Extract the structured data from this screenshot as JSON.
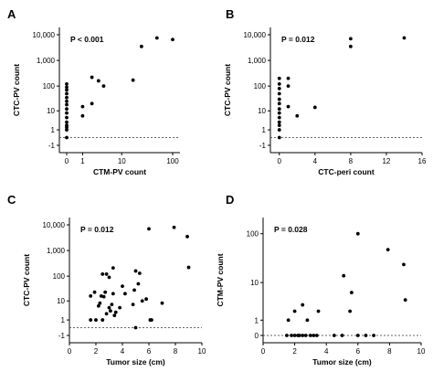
{
  "chart_data": [
    {
      "panel": "A",
      "type": "scatter",
      "pvalue": "P < 0.001",
      "xlabel": "CTM-PV count",
      "ylabel": "CTC-PV count",
      "x_scale": "symlog",
      "y_scale": "symlog",
      "x_ticks": [
        {
          "v": 0,
          "label": "0"
        },
        {
          "v": 1,
          "label": "1"
        },
        {
          "v": 10,
          "label": "10"
        },
        {
          "v": 100,
          "label": "100"
        }
      ],
      "y_ticks": [
        {
          "v": -1,
          "label": "-1"
        },
        {
          "v": 1,
          "label": "1"
        },
        {
          "v": 10,
          "label": "10"
        },
        {
          "v": 100,
          "label": "100"
        },
        {
          "v": 1000,
          "label": "1,000"
        },
        {
          "v": 10000,
          "label": "10,000"
        }
      ],
      "xlim": [
        0,
        100
      ],
      "ylim": [
        -1,
        10000
      ],
      "dashed_line_y": 0,
      "points": [
        [
          0,
          0
        ],
        [
          0,
          1
        ],
        [
          0,
          1.5
        ],
        [
          0,
          2
        ],
        [
          0,
          3
        ],
        [
          0,
          5
        ],
        [
          0,
          8
        ],
        [
          0,
          12
        ],
        [
          0,
          18
        ],
        [
          0,
          25
        ],
        [
          0,
          35
        ],
        [
          0,
          50
        ],
        [
          0,
          70
        ],
        [
          0,
          90
        ],
        [
          0,
          120
        ],
        [
          1,
          6
        ],
        [
          1,
          15
        ],
        [
          2,
          20
        ],
        [
          2,
          220
        ],
        [
          3,
          160
        ],
        [
          4,
          100
        ],
        [
          17,
          170
        ],
        [
          25,
          3500
        ],
        [
          50,
          7500
        ],
        [
          100,
          6500
        ]
      ]
    },
    {
      "panel": "B",
      "type": "scatter",
      "pvalue": "P = 0.012",
      "xlabel": "CTC-peri count",
      "ylabel": "CTC-PV count",
      "x_scale": "linear",
      "y_scale": "symlog",
      "x_ticks": [
        {
          "v": 0,
          "label": "0"
        },
        {
          "v": 4,
          "label": "4"
        },
        {
          "v": 8,
          "label": "8"
        },
        {
          "v": 12,
          "label": "12"
        },
        {
          "v": 16,
          "label": "16"
        }
      ],
      "y_ticks": [
        {
          "v": -1,
          "label": "-1"
        },
        {
          "v": 1,
          "label": "1"
        },
        {
          "v": 10,
          "label": "10"
        },
        {
          "v": 100,
          "label": "100"
        },
        {
          "v": 1000,
          "label": "1,000"
        },
        {
          "v": 10000,
          "label": "10,000"
        }
      ],
      "xlim": [
        -1,
        16
      ],
      "ylim": [
        -1,
        10000
      ],
      "dashed_line_y": 0,
      "points": [
        [
          0,
          0
        ],
        [
          0,
          1
        ],
        [
          0,
          2
        ],
        [
          0,
          3
        ],
        [
          0,
          5
        ],
        [
          0,
          8
        ],
        [
          0,
          12
        ],
        [
          0,
          20
        ],
        [
          0,
          30
        ],
        [
          0,
          50
        ],
        [
          0,
          80
        ],
        [
          0,
          120
        ],
        [
          0,
          200
        ],
        [
          1,
          15
        ],
        [
          1,
          100
        ],
        [
          1,
          200
        ],
        [
          2,
          6
        ],
        [
          4,
          14
        ],
        [
          8,
          3500
        ],
        [
          8,
          7000
        ],
        [
          14,
          7500
        ]
      ]
    },
    {
      "panel": "C",
      "type": "scatter",
      "pvalue": "P = 0.012",
      "xlabel": "Tumor size (cm)",
      "ylabel": "CTC-PV count",
      "x_scale": "linear",
      "y_scale": "symlog",
      "x_ticks": [
        {
          "v": 0,
          "label": "0"
        },
        {
          "v": 2,
          "label": "2"
        },
        {
          "v": 4,
          "label": "4"
        },
        {
          "v": 6,
          "label": "6"
        },
        {
          "v": 8,
          "label": "8"
        },
        {
          "v": 10,
          "label": "10"
        }
      ],
      "y_ticks": [
        {
          "v": -1,
          "label": "-1"
        },
        {
          "v": 1,
          "label": "1"
        },
        {
          "v": 10,
          "label": "10"
        },
        {
          "v": 100,
          "label": "100"
        },
        {
          "v": 1000,
          "label": "1,000"
        },
        {
          "v": 10000,
          "label": "10,000"
        }
      ],
      "xlim": [
        0,
        10
      ],
      "ylim": [
        -1,
        10000
      ],
      "dashed_line_y": 0,
      "points": [
        [
          1.6,
          1
        ],
        [
          1.6,
          16
        ],
        [
          1.9,
          23
        ],
        [
          2.0,
          1
        ],
        [
          2.2,
          6
        ],
        [
          2.3,
          8
        ],
        [
          2.4,
          16
        ],
        [
          2.5,
          1
        ],
        [
          2.5,
          120
        ],
        [
          2.6,
          15
        ],
        [
          2.7,
          23
        ],
        [
          2.8,
          2.5
        ],
        [
          2.8,
          120
        ],
        [
          3.0,
          5
        ],
        [
          3.0,
          90
        ],
        [
          3.1,
          3.5
        ],
        [
          3.2,
          7
        ],
        [
          3.3,
          20
        ],
        [
          3.3,
          210
        ],
        [
          3.4,
          2
        ],
        [
          3.5,
          3
        ],
        [
          3.8,
          5
        ],
        [
          4.0,
          40
        ],
        [
          4.2,
          20
        ],
        [
          4.8,
          7
        ],
        [
          4.9,
          28
        ],
        [
          5.0,
          0
        ],
        [
          5.0,
          160
        ],
        [
          5.2,
          50
        ],
        [
          5.3,
          130
        ],
        [
          5.5,
          10
        ],
        [
          5.8,
          12
        ],
        [
          6.0,
          7000
        ],
        [
          6.1,
          1
        ],
        [
          6.2,
          1
        ],
        [
          7.0,
          8
        ],
        [
          7.9,
          8000
        ],
        [
          8.9,
          3500
        ],
        [
          9.0,
          220
        ]
      ]
    },
    {
      "panel": "D",
      "type": "scatter",
      "pvalue": "P = 0.028",
      "xlabel": "Tumor size (cm)",
      "ylabel": "CTM-PV count",
      "x_scale": "linear",
      "y_scale": "symlog",
      "x_ticks": [
        {
          "v": 0,
          "label": "0"
        },
        {
          "v": 2,
          "label": "2"
        },
        {
          "v": 4,
          "label": "4"
        },
        {
          "v": 6,
          "label": "6"
        },
        {
          "v": 8,
          "label": "8"
        },
        {
          "v": 10,
          "label": "10"
        }
      ],
      "y_ticks": [
        {
          "v": 0,
          "label": "0"
        },
        {
          "v": 1,
          "label": "1"
        },
        {
          "v": 10,
          "label": "10"
        },
        {
          "v": 100,
          "label": "100"
        }
      ],
      "xlim": [
        0,
        10
      ],
      "ylim": [
        0,
        150
      ],
      "dashed_line_y": 0,
      "points": [
        [
          1.5,
          0
        ],
        [
          1.6,
          1
        ],
        [
          1.8,
          0
        ],
        [
          2.0,
          0
        ],
        [
          2.0,
          2
        ],
        [
          2.2,
          0
        ],
        [
          2.3,
          0
        ],
        [
          2.5,
          0
        ],
        [
          2.5,
          3
        ],
        [
          2.7,
          0
        ],
        [
          2.8,
          1
        ],
        [
          3.0,
          0
        ],
        [
          3.2,
          0
        ],
        [
          3.4,
          0
        ],
        [
          3.5,
          2
        ],
        [
          4.5,
          0
        ],
        [
          5.0,
          0
        ],
        [
          5.1,
          14
        ],
        [
          5.5,
          2
        ],
        [
          5.6,
          6
        ],
        [
          6.0,
          0
        ],
        [
          6.0,
          100
        ],
        [
          6.5,
          0
        ],
        [
          7.0,
          0
        ],
        [
          7.9,
          48
        ],
        [
          8.9,
          24
        ],
        [
          9.0,
          4
        ]
      ]
    }
  ],
  "panel_layout": [
    {
      "panel": "A",
      "label": "A"
    },
    {
      "panel": "B",
      "label": "B"
    },
    {
      "panel": "C",
      "label": "C"
    },
    {
      "panel": "D",
      "label": "D"
    }
  ]
}
